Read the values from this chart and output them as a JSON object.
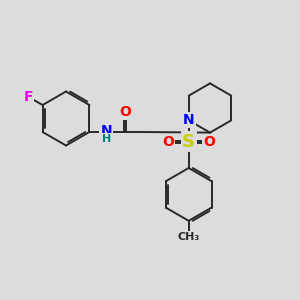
{
  "background_color": "#dcdcdc",
  "bond_color": "#2a2a2a",
  "bond_width": 1.4,
  "atom_colors": {
    "F": "#ee00ee",
    "O": "#ff0000",
    "N": "#0000ff",
    "S": "#cccc00",
    "H": "#008080",
    "C": "#2a2a2a"
  },
  "figsize": [
    3.0,
    3.0
  ],
  "dpi": 100
}
